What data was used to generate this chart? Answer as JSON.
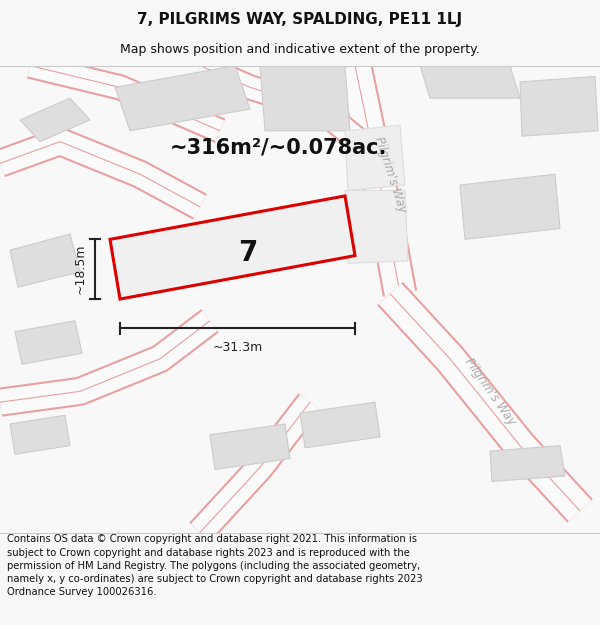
{
  "title_line1": "7, PILGRIMS WAY, SPALDING, PE11 1LJ",
  "title_line2": "Map shows position and indicative extent of the property.",
  "footer_text": "Contains OS data © Crown copyright and database right 2021. This information is subject to Crown copyright and database rights 2023 and is reproduced with the permission of HM Land Registry. The polygons (including the associated geometry, namely x, y co-ordinates) are subject to Crown copyright and database rights 2023 Ordnance Survey 100026316.",
  "area_label": "~316m²/~0.078ac.",
  "width_label": "~31.3m",
  "height_label": "~18.5m",
  "plot_number": "7",
  "bg_color": "#f7f7f7",
  "map_bg": "#f9f9f9",
  "road_color": "#e8a0a0",
  "block_fill": "#dedede",
  "block_edge": "#cccccc",
  "plot_fill": "#f0f0f0",
  "plot_edge": "#dd0000",
  "plot_edge_width": 2.2,
  "dim_color": "#222222",
  "text_color": "#111111",
  "street_label_color": "#aaaaaa",
  "title_fontsize": 11,
  "subtitle_fontsize": 9,
  "footer_fontsize": 7.2,
  "area_fontsize": 15,
  "number_fontsize": 20,
  "street_fontsize": 8.5,
  "dim_fontsize": 9
}
